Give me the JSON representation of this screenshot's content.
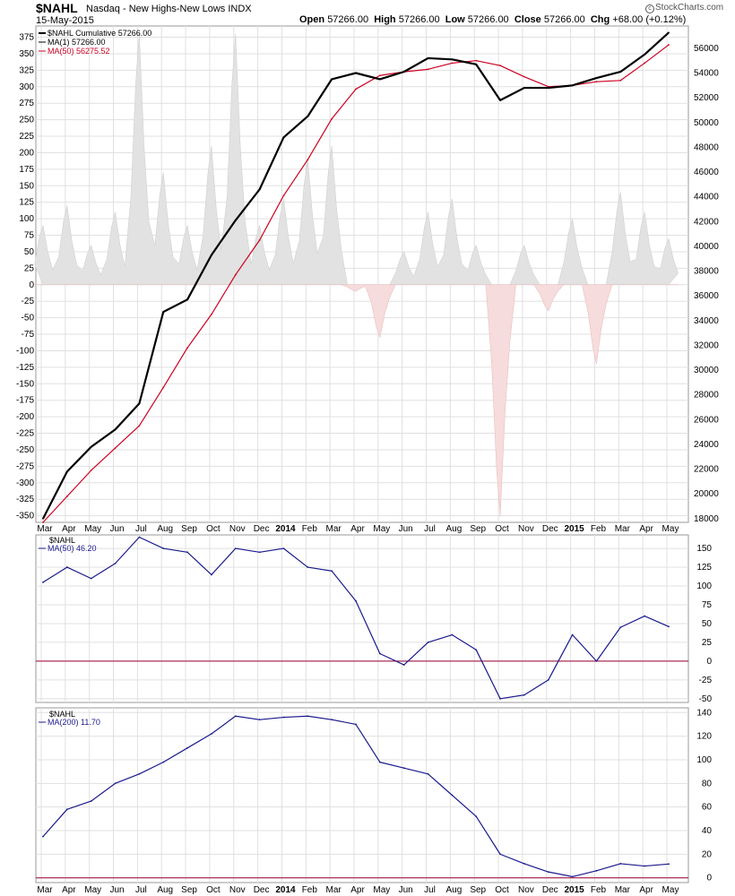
{
  "header": {
    "symbol": "$NAHL",
    "name": "Nasdaq - New Highs-New Lows",
    "exchange": "INDX",
    "date": "15-May-2015",
    "open_label": "Open",
    "open": "57266.00",
    "high_label": "High",
    "high": "57266.00",
    "low_label": "Low",
    "low": "57266.00",
    "close_label": "Close",
    "close": "57266.00",
    "chg_label": "Chg",
    "chg": "+68.00 (+0.12%)",
    "logo": "StockCharts.com"
  },
  "colors": {
    "cumulative": "#000000",
    "ma50_main": "#cc0022",
    "histogram_pos": "#e2e2e2",
    "histogram_neg": "#f6dcdc",
    "ma_lower": "#1a1a8c",
    "zero_line": "#990033",
    "grid": "#e0e0e0"
  },
  "x_axis": {
    "months": [
      "Mar",
      "Apr",
      "May",
      "Jun",
      "Jul",
      "Aug",
      "Sep",
      "Oct",
      "Nov",
      "Dec",
      "2014",
      "Feb",
      "Mar",
      "Apr",
      "May",
      "Jun",
      "Jul",
      "Aug",
      "Sep",
      "Oct",
      "Nov",
      "Dec",
      "2015",
      "Feb",
      "Mar",
      "Apr",
      "May"
    ],
    "bold": [
      false,
      false,
      false,
      false,
      false,
      false,
      false,
      false,
      false,
      false,
      true,
      false,
      false,
      false,
      false,
      false,
      false,
      false,
      false,
      false,
      false,
      false,
      true,
      false,
      false,
      false,
      false
    ]
  },
  "chart_data": [
    {
      "type": "line",
      "panel": "main",
      "title": "$NAHL Nasdaq - New Highs-New Lows INDX",
      "legend": [
        {
          "text": "$NAHL Cumulative 57266.00"
        },
        {
          "text": "MA(1) 57266.00"
        },
        {
          "text": "MA(50) 56275.52"
        }
      ],
      "left_axis_ticks": [
        375,
        350,
        325,
        300,
        275,
        250,
        225,
        200,
        175,
        150,
        125,
        100,
        75,
        50,
        25,
        0,
        -25,
        -50,
        -75,
        -100,
        -125,
        -150,
        -175,
        -200,
        -225,
        -250,
        -275,
        -300,
        -325,
        -350
      ],
      "right_axis_ticks": [
        56000,
        54000,
        52000,
        50000,
        48000,
        46000,
        44000,
        42000,
        40000,
        38000,
        36000,
        34000,
        32000,
        30000,
        28000,
        26000,
        24000,
        22000,
        20000,
        18000
      ],
      "left_ylim": [
        -360,
        392
      ],
      "right_ylim": [
        17700,
        57800
      ],
      "x": [
        "2013-03",
        "2013-04",
        "2013-05",
        "2013-06",
        "2013-07",
        "2013-08",
        "2013-09",
        "2013-10",
        "2013-11",
        "2013-12",
        "2014-01",
        "2014-02",
        "2014-03",
        "2014-04",
        "2014-05",
        "2014-06",
        "2014-07",
        "2014-08",
        "2014-09",
        "2014-10",
        "2014-11",
        "2014-12",
        "2015-01",
        "2015-02",
        "2015-03",
        "2015-04",
        "2015-05"
      ],
      "series": [
        {
          "name": "$NAHL Cumulative",
          "axis": "right",
          "values": [
            18000,
            21800,
            23800,
            25200,
            27300,
            34700,
            35700,
            39300,
            42100,
            44600,
            48800,
            50500,
            53500,
            54000,
            53500,
            54100,
            55200,
            55100,
            54700,
            51800,
            52800,
            52800,
            53000,
            53600,
            54100,
            55500,
            57266
          ]
        },
        {
          "name": "MA(50)",
          "axis": "right",
          "values": [
            17700,
            19800,
            21900,
            23700,
            25500,
            28600,
            31800,
            34500,
            37700,
            40500,
            44100,
            47000,
            50300,
            52700,
            53800,
            54100,
            54300,
            54800,
            55000,
            54600,
            53700,
            52900,
            53000,
            53300,
            53400,
            54800,
            56276
          ]
        },
        {
          "name": "$NAHL",
          "type": "area",
          "axis": "left",
          "values": [
            90,
            120,
            60,
            110,
            380,
            170,
            90,
            210,
            380,
            90,
            130,
            190,
            210,
            -10,
            -80,
            50,
            110,
            130,
            60,
            -350,
            60,
            -40,
            100,
            -120,
            140,
            110,
            70
          ]
        }
      ]
    },
    {
      "type": "line",
      "panel": "middle",
      "legend": [
        {
          "text": "$NAHL"
        },
        {
          "text": "MA(50) 46.20"
        }
      ],
      "right_axis_ticks": [
        150,
        125,
        100,
        75,
        50,
        25,
        0,
        -25,
        -50
      ],
      "ylim": [
        -55,
        168
      ],
      "x": [
        "2013-03",
        "2013-04",
        "2013-05",
        "2013-06",
        "2013-07",
        "2013-08",
        "2013-09",
        "2013-10",
        "2013-11",
        "2013-12",
        "2014-01",
        "2014-02",
        "2014-03",
        "2014-04",
        "2014-05",
        "2014-06",
        "2014-07",
        "2014-08",
        "2014-09",
        "2014-10",
        "2014-11",
        "2014-12",
        "2015-01",
        "2015-02",
        "2015-03",
        "2015-04",
        "2015-05"
      ],
      "series": [
        {
          "name": "MA(50)",
          "values": [
            105,
            125,
            110,
            130,
            165,
            150,
            145,
            115,
            150,
            145,
            150,
            125,
            120,
            80,
            10,
            -5,
            25,
            35,
            15,
            -50,
            -45,
            -25,
            35,
            0,
            45,
            60,
            46
          ]
        }
      ]
    },
    {
      "type": "line",
      "panel": "bottom",
      "legend": [
        {
          "text": "$NAHL"
        },
        {
          "text": "MA(200) 11.70"
        }
      ],
      "right_axis_ticks": [
        140,
        120,
        100,
        80,
        60,
        40,
        20,
        0
      ],
      "ylim": [
        -4,
        144
      ],
      "x": [
        "2013-03",
        "2013-04",
        "2013-05",
        "2013-06",
        "2013-07",
        "2013-08",
        "2013-09",
        "2013-10",
        "2013-11",
        "2013-12",
        "2014-01",
        "2014-02",
        "2014-03",
        "2014-04",
        "2014-05",
        "2014-06",
        "2014-07",
        "2014-08",
        "2014-09",
        "2014-10",
        "2014-11",
        "2014-12",
        "2015-01",
        "2015-02",
        "2015-03",
        "2015-04",
        "2015-05"
      ],
      "series": [
        {
          "name": "MA(200)",
          "values": [
            35,
            58,
            65,
            80,
            88,
            98,
            110,
            122,
            137,
            134,
            136,
            137,
            134,
            130,
            98,
            93,
            88,
            70,
            52,
            20,
            12,
            5,
            1,
            6,
            12,
            10,
            11.7
          ]
        }
      ]
    }
  ]
}
